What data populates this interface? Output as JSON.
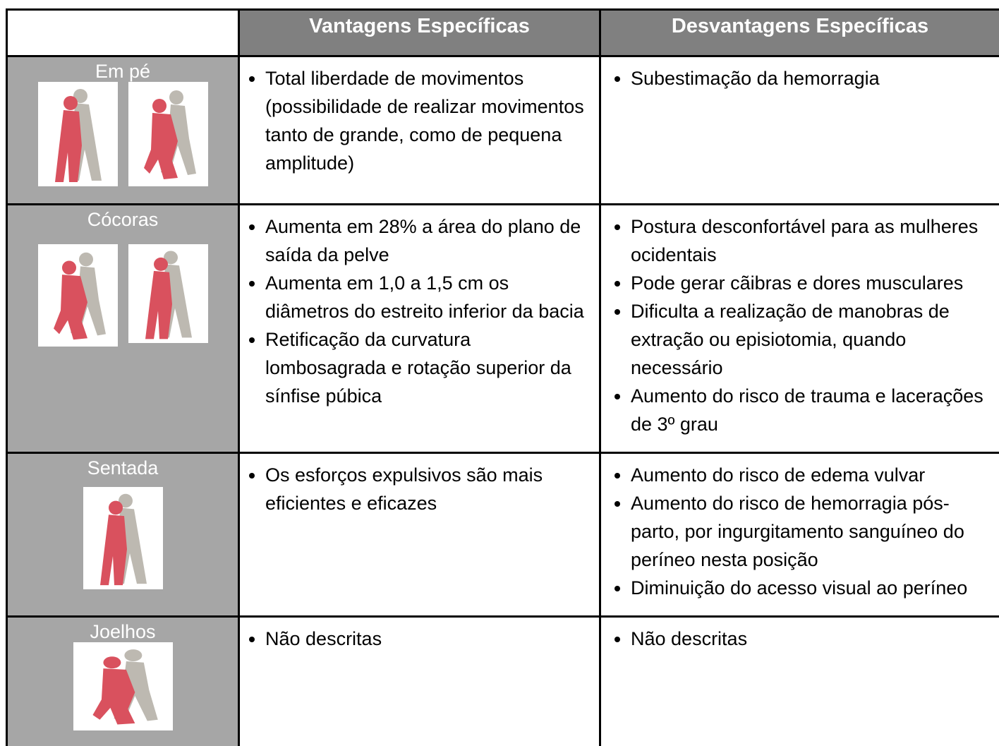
{
  "table": {
    "columns": [
      "Vantagens Específicas",
      "Desvantagens Específicas"
    ],
    "rows": [
      {
        "label": "Em pé",
        "advantages": [
          "Total liberdade de movimentos (possibilidade de realizar movimentos tanto de grande, como de pequena amplitude)"
        ],
        "disadvantages": [
          "Subestimação da hemorragia"
        ]
      },
      {
        "label": "Cócoras",
        "advantages": [
          "Aumenta em 28% a área do plano de saída da pelve",
          "Aumenta em 1,0 a 1,5 cm os diâmetros do estreito inferior da bacia",
          "Retificação da curvatura lombosagrada e rotação superior da sínfise púbica"
        ],
        "disadvantages": [
          "Postura desconfortável para as mulheres ocidentais",
          "Pode gerar cãibras e dores musculares",
          "Dificulta a realização de manobras de extração ou episiotomia, quando necessário",
          "Aumento do risco de trauma e lacerações de 3º grau"
        ]
      },
      {
        "label": "Sentada",
        "advantages": [
          "Os esforços expulsivos são mais eficientes e eficazes"
        ],
        "disadvantages": [
          "Aumento do risco de edema vulvar",
          "Aumento do risco de hemorragia pós-parto, por ingurgitamento sanguíneo do períneo nesta posição",
          "Diminuição do acesso visual ao períneo"
        ]
      },
      {
        "label": "Joelhos",
        "advantages": [
          "Não descritas"
        ],
        "disadvantages": [
          "Não descritas"
        ]
      }
    ]
  }
}
